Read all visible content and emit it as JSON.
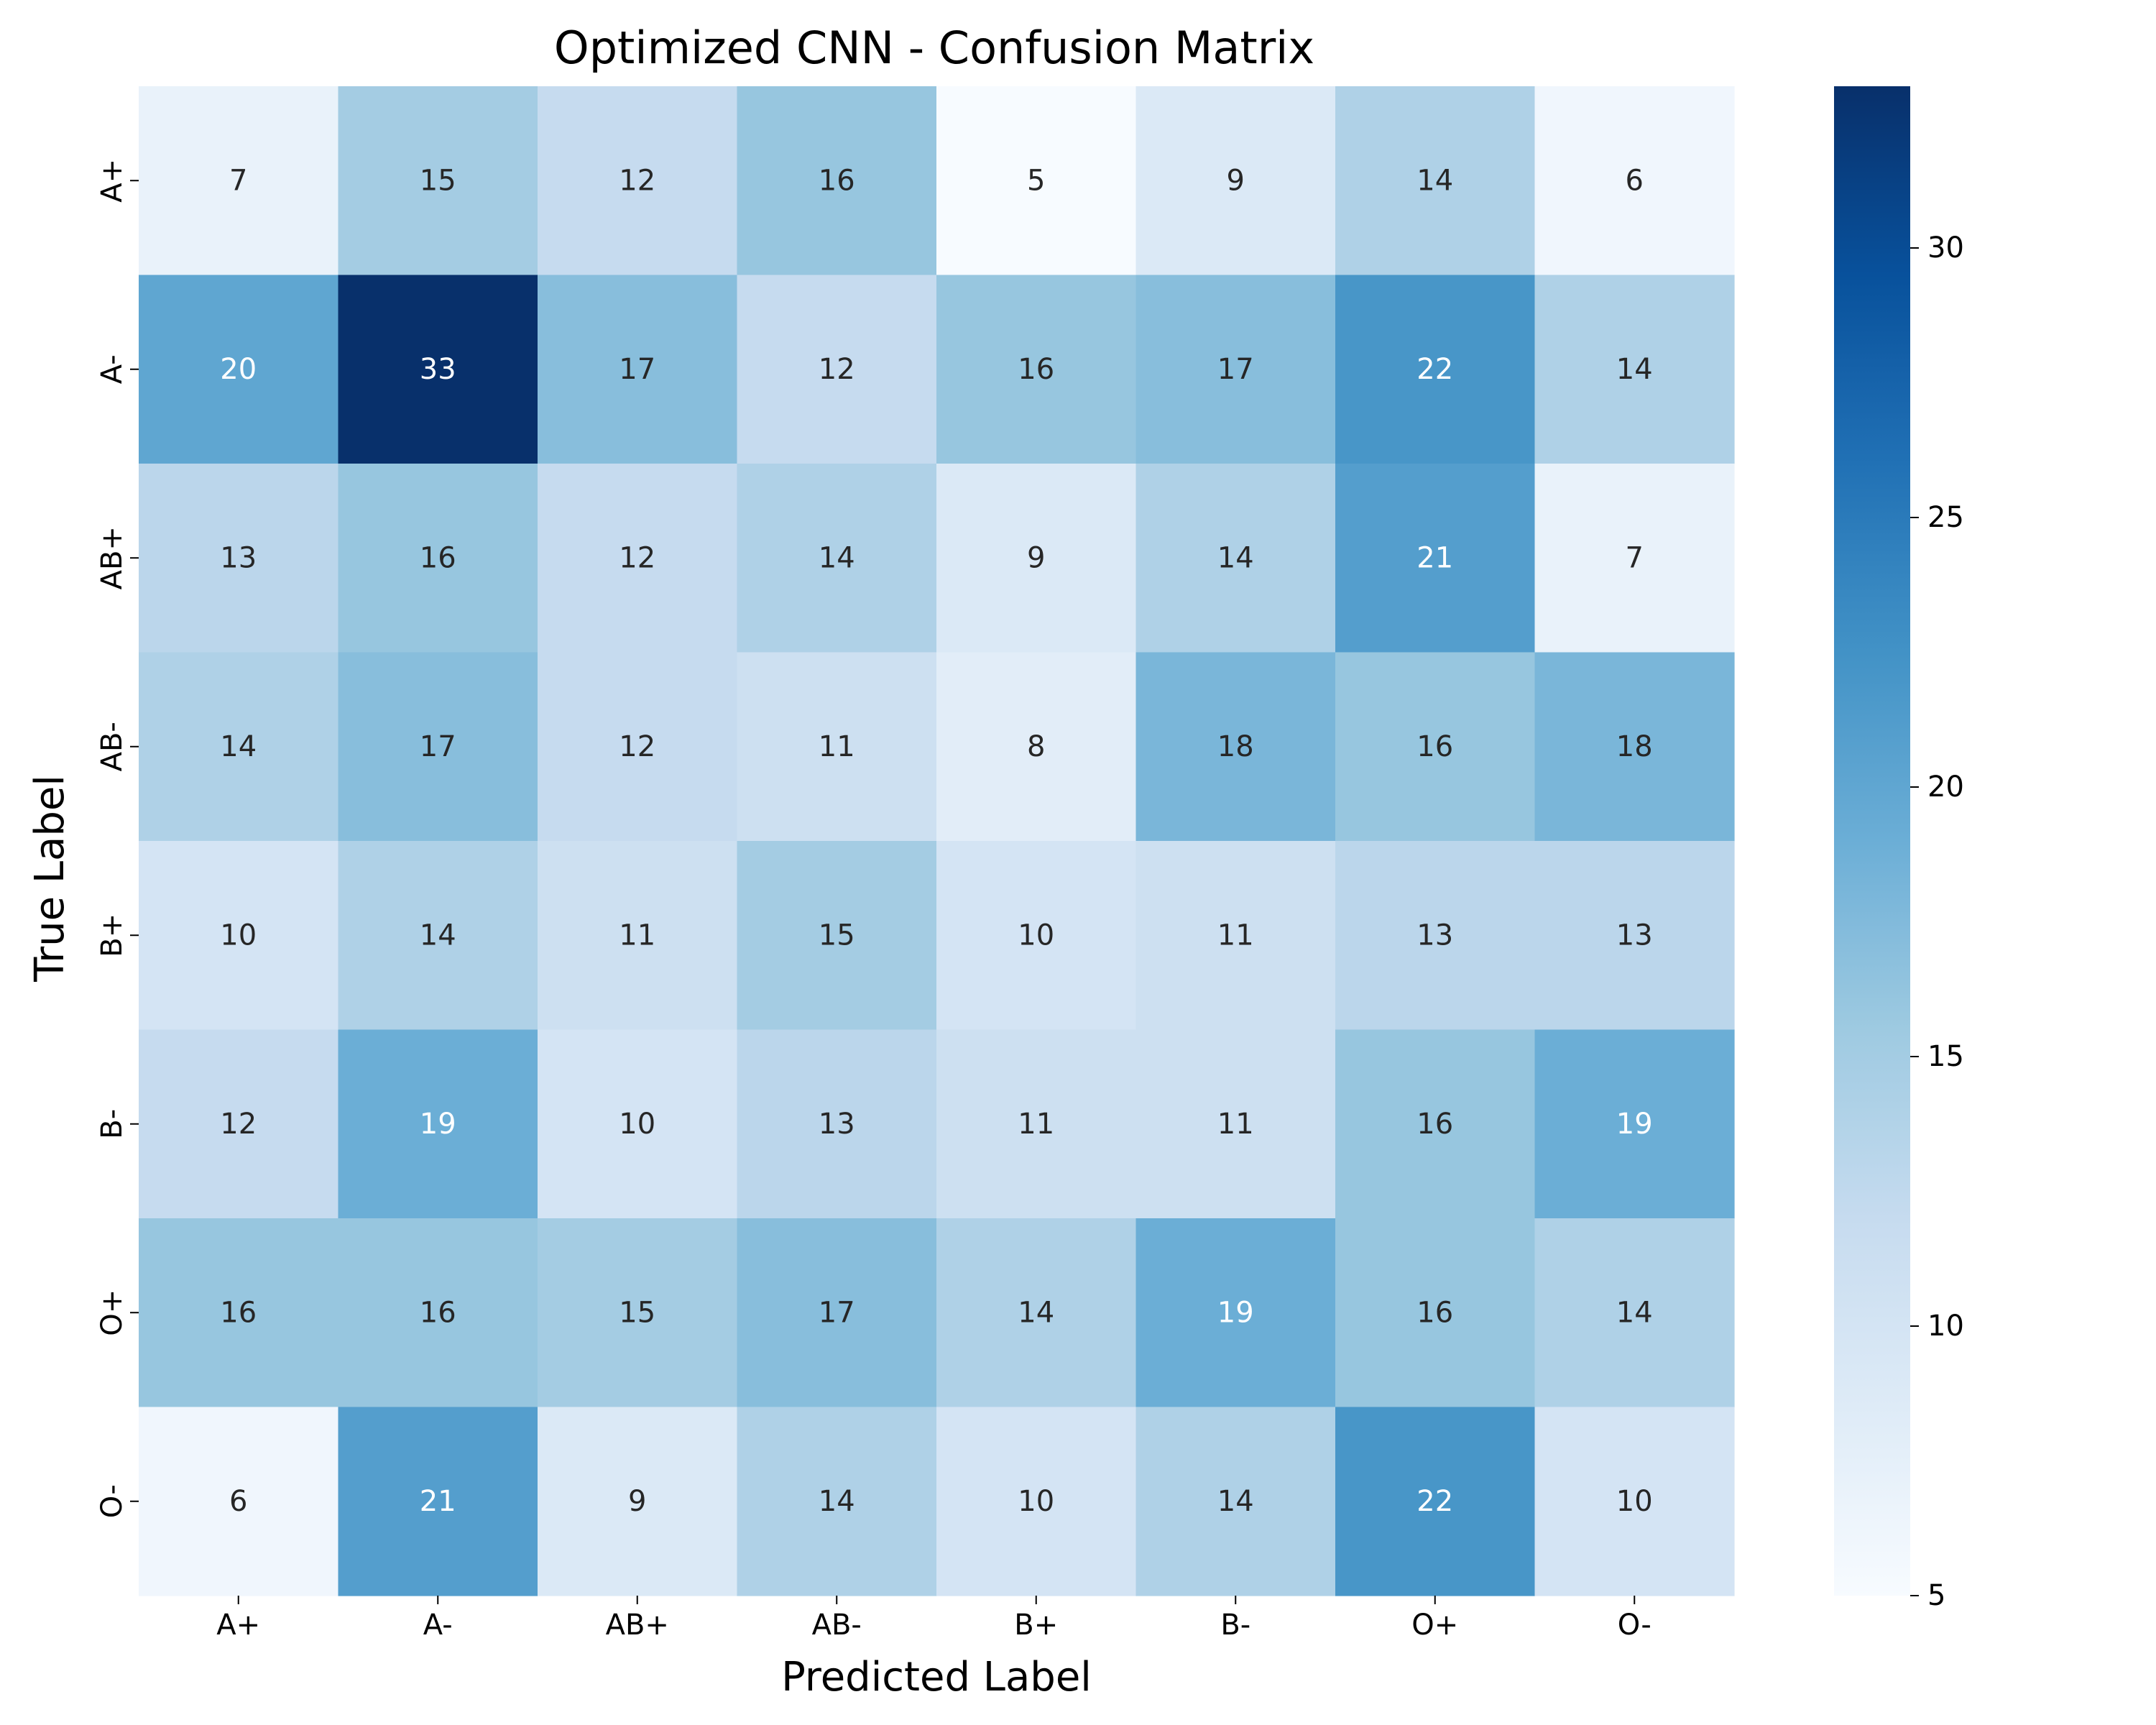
{
  "chart_data": {
    "type": "heatmap",
    "title": "Optimized CNN - Confusion Matrix",
    "xlabel": "Predicted Label",
    "ylabel": "True Label",
    "x_categories": [
      "A+",
      "A-",
      "AB+",
      "AB-",
      "B+",
      "B-",
      "O+",
      "O-"
    ],
    "y_categories": [
      "A+",
      "A-",
      "AB+",
      "AB-",
      "B+",
      "B-",
      "O+",
      "O-"
    ],
    "matrix": [
      [
        7,
        15,
        12,
        16,
        5,
        9,
        14,
        6
      ],
      [
        20,
        33,
        17,
        12,
        16,
        17,
        22,
        14
      ],
      [
        13,
        16,
        12,
        14,
        9,
        14,
        21,
        7
      ],
      [
        14,
        17,
        12,
        11,
        8,
        18,
        16,
        18
      ],
      [
        10,
        14,
        11,
        15,
        10,
        11,
        13,
        13
      ],
      [
        12,
        19,
        10,
        13,
        11,
        11,
        16,
        19
      ],
      [
        16,
        16,
        15,
        17,
        14,
        19,
        16,
        14
      ],
      [
        6,
        21,
        9,
        14,
        10,
        14,
        22,
        10
      ]
    ],
    "colormap": "Blues",
    "color_range": [
      5,
      33
    ],
    "colorbar_ticks": [
      5,
      10,
      15,
      20,
      25,
      30
    ],
    "grid": false,
    "colorbar_position": "right"
  }
}
